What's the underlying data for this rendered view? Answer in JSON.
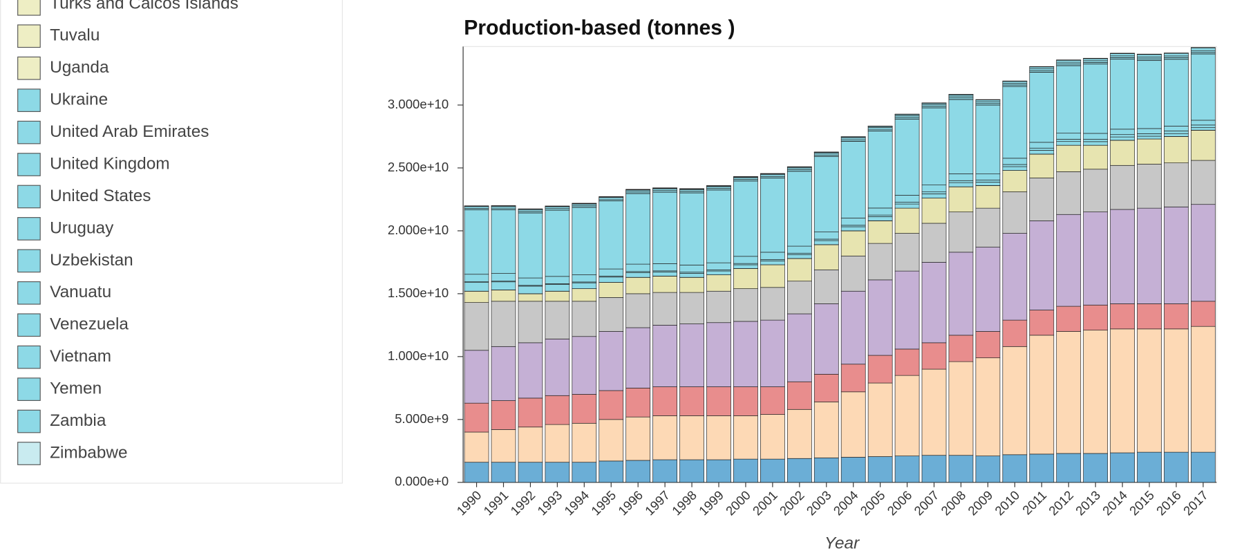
{
  "chart_data": {
    "type": "stacked-bar",
    "title": "Production-based (tonnes )",
    "x_label": "Year",
    "categories": [
      "1990",
      "1991",
      "1992",
      "1993",
      "1994",
      "1995",
      "1996",
      "1997",
      "1998",
      "1999",
      "2000",
      "2001",
      "2002",
      "2003",
      "2004",
      "2005",
      "2006",
      "2007",
      "2008",
      "2009",
      "2010",
      "2011",
      "2012",
      "2013",
      "2014",
      "2015",
      "2016",
      "2017"
    ],
    "ylim": [
      0,
      34650000000
    ],
    "yticks": [
      {
        "value": 0,
        "label": "0.000e+0"
      },
      {
        "value": 5000000000,
        "label": "5.000e+9"
      },
      {
        "value": 10000000000,
        "label": "1.000e+10"
      },
      {
        "value": 15000000000,
        "label": "1.500e+10"
      },
      {
        "value": 20000000000,
        "label": "2.000e+10"
      },
      {
        "value": 25000000000,
        "label": "2.500e+10"
      },
      {
        "value": 30000000000,
        "label": "3.000e+10"
      }
    ],
    "series": [
      {
        "color": "#6baed6",
        "values": [
          1600000000.0,
          1600000000.0,
          1600000000.0,
          1600000000.0,
          1600000000.0,
          1700000000.0,
          1750000000.0,
          1800000000.0,
          1800000000.0,
          1800000000.0,
          1850000000.0,
          1850000000.0,
          1900000000.0,
          1950000000.0,
          2000000000.0,
          2050000000.0,
          2100000000.0,
          2150000000.0,
          2150000000.0,
          2100000000.0,
          2200000000.0,
          2250000000.0,
          2300000000.0,
          2300000000.0,
          2350000000.0,
          2400000000.0,
          2400000000.0,
          2400000000.0
        ]
      },
      {
        "color": "#fdd9b5",
        "values": [
          2400000000.0,
          2600000000.0,
          2800000000.0,
          3000000000.0,
          3100000000.0,
          3300000000.0,
          3450000000.0,
          3500000000.0,
          3500000000.0,
          3500000000.0,
          3450000000.0,
          3550000000.0,
          3900000000.0,
          4450000000.0,
          5200000000.0,
          5850000000.0,
          6400000000.0,
          6850000000.0,
          7450000000.0,
          7800000000.0,
          8600000000.0,
          9450000000.0,
          9700000000.0,
          9800000000.0,
          9850000000.0,
          9800000000.0,
          9800000000.0,
          10000000000.0
        ]
      },
      {
        "color": "#e88d8d",
        "values": [
          2300000000.0,
          2300000000.0,
          2300000000.0,
          2300000000.0,
          2300000000.0,
          2300000000.0,
          2300000000.0,
          2300000000.0,
          2300000000.0,
          2300000000.0,
          2300000000.0,
          2200000000.0,
          2200000000.0,
          2200000000.0,
          2200000000.0,
          2200000000.0,
          2100000000.0,
          2100000000.0,
          2100000000.0,
          2100000000.0,
          2100000000.0,
          2000000000.0,
          2000000000.0,
          2000000000.0,
          2000000000.0,
          2000000000.0,
          2000000000.0,
          2000000000.0
        ]
      },
      {
        "color": "#c5b0d5",
        "values": [
          4200000000.0,
          4300000000.0,
          4400000000.0,
          4500000000.0,
          4600000000.0,
          4700000000.0,
          4800000000.0,
          4900000000.0,
          5000000000.0,
          5100000000.0,
          5200000000.0,
          5300000000.0,
          5400000000.0,
          5600000000.0,
          5800000000.0,
          6000000000.0,
          6200000000.0,
          6400000000.0,
          6600000000.0,
          6700000000.0,
          6900000000.0,
          7100000000.0,
          7300000000.0,
          7400000000.0,
          7500000000.0,
          7600000000.0,
          7700000000.0,
          7700000000.0
        ]
      },
      {
        "color": "#c7c7c7",
        "values": [
          3800000000.0,
          3600000000.0,
          3300000000.0,
          3000000000.0,
          2800000000.0,
          2700000000.0,
          2700000000.0,
          2600000000.0,
          2500000000.0,
          2500000000.0,
          2600000000.0,
          2600000000.0,
          2600000000.0,
          2700000000.0,
          2800000000.0,
          2900000000.0,
          3000000000.0,
          3100000000.0,
          3200000000.0,
          3100000000.0,
          3300000000.0,
          3400000000.0,
          3400000000.0,
          3400000000.0,
          3500000000.0,
          3500000000.0,
          3500000000.0,
          3500000000.0
        ]
      },
      {
        "color": "#e7e4b0",
        "values": [
          900000000.0,
          900000000.0,
          600000000.0,
          800000000.0,
          1000000000.0,
          1200000000.0,
          1300000000.0,
          1300000000.0,
          1200000000.0,
          1300000000.0,
          1600000000.0,
          1800000000.0,
          1800000000.0,
          2000000000.0,
          2000000000.0,
          1800000000.0,
          2000000000.0,
          2000000000.0,
          2000000000.0,
          1800000000.0,
          1700000000.0,
          1900000000.0,
          2100000000.0,
          1900000000.0,
          2000000000.0,
          2000000000.0,
          2100000000.0,
          2400000000.0
        ]
      },
      {
        "name": "Turks and Caicos Islands",
        "color": "#eeeec4",
        "values": [
          100000.0,
          100000.0,
          100000.0,
          100000.0,
          100000.0,
          100000.0,
          100000.0,
          100000.0,
          100000.0,
          100000.0,
          100000.0,
          100000.0,
          100000.0,
          100000.0,
          100000.0,
          100000.0,
          100000.0,
          100000.0,
          100000.0,
          100000.0,
          100000.0,
          100000.0,
          100000.0,
          100000.0,
          100000.0,
          100000.0,
          100000.0,
          100000.0
        ]
      },
      {
        "name": "Tuvalu",
        "color": "#eeeec4",
        "values": [
          10000.0,
          10000.0,
          10000.0,
          10000.0,
          10000.0,
          10000.0,
          10000.0,
          10000.0,
          10000.0,
          10000.0,
          10000.0,
          10000.0,
          10000.0,
          10000.0,
          10000.0,
          10000.0,
          10000.0,
          10000.0,
          10000.0,
          10000.0,
          10000.0,
          10000.0,
          10000.0,
          10000.0,
          10000.0,
          10000.0,
          10000.0,
          10000.0
        ]
      },
      {
        "name": "Uganda",
        "color": "#eeeec4",
        "values": [
          2000000.0,
          2000000.0,
          2000000.0,
          2000000.0,
          2000000.0,
          2000000.0,
          2000000.0,
          2000000.0,
          2000000.0,
          2000000.0,
          2000000.0,
          2000000.0,
          2000000.0,
          2000000.0,
          2000000.0,
          2000000.0,
          2000000.0,
          2000000.0,
          2000000.0,
          2000000.0,
          2000000.0,
          2000000.0,
          2000000.0,
          2000000.0,
          2000000.0,
          2000000.0,
          2000000.0,
          2000000.0
        ]
      },
      {
        "name": "Ukraine",
        "color": "#8dd9e6",
        "values": [
          690000000.0,
          640000000.0,
          600000000.0,
          530000000.0,
          460000000.0,
          420000000.0,
          380000000.0,
          330000000.0,
          320000000.0,
          300000000.0,
          300000000.0,
          310000000.0,
          310000000.0,
          320000000.0,
          320000000.0,
          320000000.0,
          330000000.0,
          340000000.0,
          330000000.0,
          270000000.0,
          300000000.0,
          300000000.0,
          300000000.0,
          290000000.0,
          260000000.0,
          220000000.0,
          230000000.0,
          200000000.0
        ]
      },
      {
        "name": "United Arab Emirates",
        "color": "#8dd9e6",
        "values": [
          55000000.0,
          58000000.0,
          61000000.0,
          65000000.0,
          70000000.0,
          75000000.0,
          80000000.0,
          85000000.0,
          90000000.0,
          95000000.0,
          100000000.0,
          105000000.0,
          110000000.0,
          115000000.0,
          120000000.0,
          130000000.0,
          140000000.0,
          150000000.0,
          160000000.0,
          160000000.0,
          170000000.0,
          175000000.0,
          180000000.0,
          185000000.0,
          190000000.0,
          200000000.0,
          205000000.0,
          210000000.0
        ]
      },
      {
        "name": "United Kingdom",
        "color": "#8dd9e6",
        "values": [
          600000000.0,
          610000000.0,
          590000000.0,
          580000000.0,
          570000000.0,
          570000000.0,
          590000000.0,
          570000000.0,
          570000000.0,
          560000000.0,
          570000000.0,
          580000000.0,
          560000000.0,
          570000000.0,
          570000000.0,
          560000000.0,
          560000000.0,
          550000000.0,
          540000000.0,
          490000000.0,
          500000000.0,
          460000000.0,
          480000000.0,
          470000000.0,
          430000000.0,
          410000000.0,
          390000000.0,
          380000000.0
        ]
      },
      {
        "name": "United States",
        "color": "#8dd9e6",
        "values": [
          5120000000.0,
          5070000000.0,
          5170000000.0,
          5270000000.0,
          5360000000.0,
          5420000000.0,
          5610000000.0,
          5690000000.0,
          5730000000.0,
          5790000000.0,
          5990000000.0,
          5900000000.0,
          5950000000.0,
          5990000000.0,
          6100000000.0,
          6130000000.0,
          6050000000.0,
          6130000000.0,
          5910000000.0,
          5480000000.0,
          5700000000.0,
          5570000000.0,
          5370000000.0,
          5510000000.0,
          5560000000.0,
          5420000000.0,
          5310000000.0,
          5270000000.0
        ]
      },
      {
        "name": "Uruguay",
        "color": "#8dd9e6",
        "values": [
          6000000.0,
          6000000.0,
          6000000.0,
          6000000.0,
          6000000.0,
          6000000.0,
          6000000.0,
          6000000.0,
          6000000.0,
          6000000.0,
          6000000.0,
          6000000.0,
          6000000.0,
          6000000.0,
          6000000.0,
          6000000.0,
          6000000.0,
          6000000.0,
          6000000.0,
          6000000.0,
          6000000.0,
          6000000.0,
          6000000.0,
          6000000.0,
          6000000.0,
          6000000.0,
          6000000.0,
          6000000.0
        ]
      },
      {
        "name": "Uzbekistan",
        "color": "#8dd9e6",
        "values": [
          120000000.0,
          120000000.0,
          120000000.0,
          120000000.0,
          120000000.0,
          120000000.0,
          120000000.0,
          120000000.0,
          120000000.0,
          120000000.0,
          120000000.0,
          120000000.0,
          120000000.0,
          120000000.0,
          120000000.0,
          120000000.0,
          120000000.0,
          120000000.0,
          120000000.0,
          120000000.0,
          120000000.0,
          120000000.0,
          120000000.0,
          120000000.0,
          120000000.0,
          120000000.0,
          120000000.0,
          120000000.0
        ]
      },
      {
        "name": "Vanuatu",
        "color": "#8dd9e6",
        "values": [
          100000.0,
          100000.0,
          100000.0,
          100000.0,
          100000.0,
          100000.0,
          100000.0,
          100000.0,
          100000.0,
          100000.0,
          100000.0,
          100000.0,
          100000.0,
          100000.0,
          100000.0,
          100000.0,
          100000.0,
          100000.0,
          100000.0,
          100000.0,
          100000.0,
          100000.0,
          100000.0,
          100000.0,
          100000.0,
          100000.0,
          100000.0,
          100000.0
        ]
      },
      {
        "name": "Venezuela",
        "color": "#8dd9e6",
        "values": [
          140000000.0,
          140000000.0,
          140000000.0,
          140000000.0,
          140000000.0,
          140000000.0,
          140000000.0,
          140000000.0,
          140000000.0,
          140000000.0,
          140000000.0,
          140000000.0,
          140000000.0,
          140000000.0,
          140000000.0,
          140000000.0,
          140000000.0,
          140000000.0,
          140000000.0,
          140000000.0,
          140000000.0,
          140000000.0,
          140000000.0,
          140000000.0,
          140000000.0,
          140000000.0,
          140000000.0,
          140000000.0
        ]
      },
      {
        "name": "Vietnam",
        "color": "#8dd9e6",
        "values": [
          21000000.0,
          22000000.0,
          24000000.0,
          27000000.0,
          31000000.0,
          32000000.0,
          36000000.0,
          41000000.0,
          45000000.0,
          50000000.0,
          54000000.0,
          60000000.0,
          66000000.0,
          73000000.0,
          80000000.0,
          90000000.0,
          97000000.0,
          103000000.0,
          114000000.0,
          133000000.0,
          142000000.0,
          155000000.0,
          158000000.0,
          163000000.0,
          180000000.0,
          199000000.0,
          205000000.0,
          218000000.0
        ]
      },
      {
        "name": "Yemen",
        "color": "#8dd9e6",
        "values": [
          15000000.0,
          15000000.0,
          15000000.0,
          15000000.0,
          15000000.0,
          15000000.0,
          15000000.0,
          15000000.0,
          15000000.0,
          15000000.0,
          15000000.0,
          15000000.0,
          15000000.0,
          15000000.0,
          15000000.0,
          15000000.0,
          15000000.0,
          15000000.0,
          15000000.0,
          15000000.0,
          15000000.0,
          15000000.0,
          15000000.0,
          15000000.0,
          15000000.0,
          15000000.0,
          15000000.0,
          15000000.0
        ]
      },
      {
        "name": "Zambia",
        "color": "#8dd9e6",
        "values": [
          3000000.0,
          3000000.0,
          3000000.0,
          3000000.0,
          3000000.0,
          3000000.0,
          3000000.0,
          3000000.0,
          3000000.0,
          3000000.0,
          3000000.0,
          3000000.0,
          3000000.0,
          3000000.0,
          3000000.0,
          3000000.0,
          3000000.0,
          3000000.0,
          3000000.0,
          3000000.0,
          3000000.0,
          3000000.0,
          3000000.0,
          3000000.0,
          3000000.0,
          3000000.0,
          3000000.0,
          3000000.0
        ]
      },
      {
        "name": "Zimbabwe",
        "color": "#c9ebf0",
        "values": [
          16000000.0,
          16000000.0,
          16000000.0,
          16000000.0,
          16000000.0,
          16000000.0,
          16000000.0,
          16000000.0,
          16000000.0,
          16000000.0,
          16000000.0,
          16000000.0,
          16000000.0,
          16000000.0,
          16000000.0,
          16000000.0,
          16000000.0,
          16000000.0,
          16000000.0,
          16000000.0,
          16000000.0,
          16000000.0,
          16000000.0,
          16000000.0,
          16000000.0,
          16000000.0,
          16000000.0,
          16000000.0
        ]
      }
    ]
  }
}
